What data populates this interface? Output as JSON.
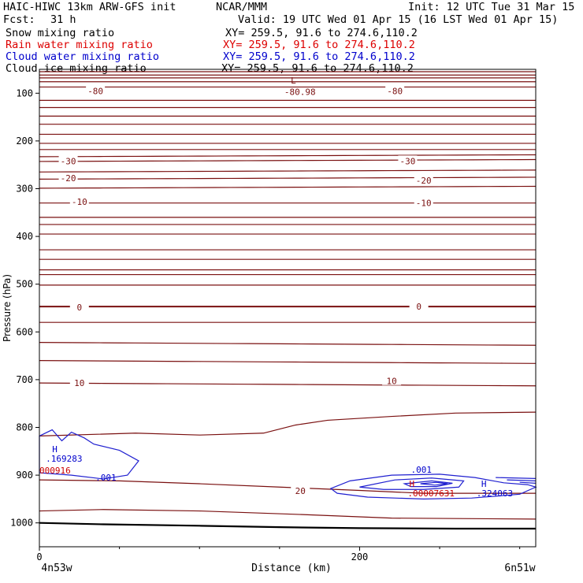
{
  "header": {
    "title": "HAIC-HIWC 13km ARW-GFS init",
    "org": "NCAR/MMM",
    "init": "Init: 12 UTC Tue 31 Mar 15",
    "fcst_label": "Fcst:",
    "fcst_value": "31 h",
    "valid": "Valid: 19 UTC Wed 01 Apr 15 (16 LST Wed 01 Apr 15)"
  },
  "fields": [
    {
      "name": "Snow mixing ratio",
      "xy": "XY= 259.5, 91.6 to 274.6,110.2",
      "color": "#000000"
    },
    {
      "name": "Rain water mixing ratio",
      "xy": "XY= 259.5, 91.6 to 274.6,110.2",
      "color": "#dd0000"
    },
    {
      "name": "Cloud water mixing ratio",
      "xy": "XY= 259.5, 91.6 to 274.6,110.2",
      "color": "#0000cc"
    },
    {
      "name": "Cloud ice mixing ratio",
      "xy": "XY= 259.5, 91.6 to 274.6,110.2",
      "color": "#000000"
    }
  ],
  "chart_data": {
    "type": "line",
    "xlabel": "Distance (km)",
    "ylabel": "Pressure (hPa)",
    "xlim": [
      0,
      310
    ],
    "ylim": [
      50,
      1050
    ],
    "xticks": [
      0,
      200
    ],
    "yticks": [
      100,
      200,
      300,
      400,
      500,
      600,
      700,
      800,
      900,
      1000
    ],
    "x_endpoint_labels": {
      "left": "4n53w",
      "right": "6n51w"
    },
    "temperature_contour_color": "#7a1010",
    "cloud_water_color": "#2020d0",
    "isotherm_labels": [
      {
        "text": "-80",
        "x": 35,
        "p": 95
      },
      {
        "text": "-80",
        "x": 222,
        "p": 95
      },
      {
        "text": "-30",
        "x": 18,
        "p": 242
      },
      {
        "text": "-30",
        "x": 230,
        "p": 242
      },
      {
        "text": "-20",
        "x": 18,
        "p": 278
      },
      {
        "text": "-20",
        "x": 240,
        "p": 283
      },
      {
        "text": "-10",
        "x": 25,
        "p": 327
      },
      {
        "text": "-10",
        "x": 240,
        "p": 330
      },
      {
        "text": "0",
        "x": 25,
        "p": 548
      },
      {
        "text": "0",
        "x": 237,
        "p": 547
      },
      {
        "text": "10",
        "x": 25,
        "p": 707
      },
      {
        "text": "10",
        "x": 220,
        "p": 703
      },
      {
        "text": "20",
        "x": 163,
        "p": 933
      }
    ],
    "extrema": [
      {
        "text": "L",
        "x": 157,
        "p": 73,
        "color": "#7a1010"
      },
      {
        "text": "-80.98",
        "x": 153,
        "p": 97,
        "color": "#7a1010"
      },
      {
        "text": "H",
        "x": 8,
        "p": 845,
        "color": "#0000cc"
      },
      {
        "text": ".169283",
        "x": 4,
        "p": 865,
        "color": "#0000cc"
      },
      {
        "text": "000916",
        "x": 0,
        "p": 890,
        "color": "#cc0000"
      },
      {
        "text": ".001",
        "x": 35,
        "p": 905,
        "color": "#0000cc"
      },
      {
        "text": ".001",
        "x": 232,
        "p": 888,
        "color": "#0000cc"
      },
      {
        "text": "H",
        "x": 231,
        "p": 918,
        "color": "#cc0000"
      },
      {
        "text": ".00007631",
        "x": 230,
        "p": 938,
        "color": "#cc0000"
      },
      {
        "text": "H",
        "x": 276,
        "p": 918,
        "color": "#0000cc"
      },
      {
        "text": ".324063",
        "x": 273,
        "p": 938,
        "color": "#0000cc"
      }
    ]
  }
}
